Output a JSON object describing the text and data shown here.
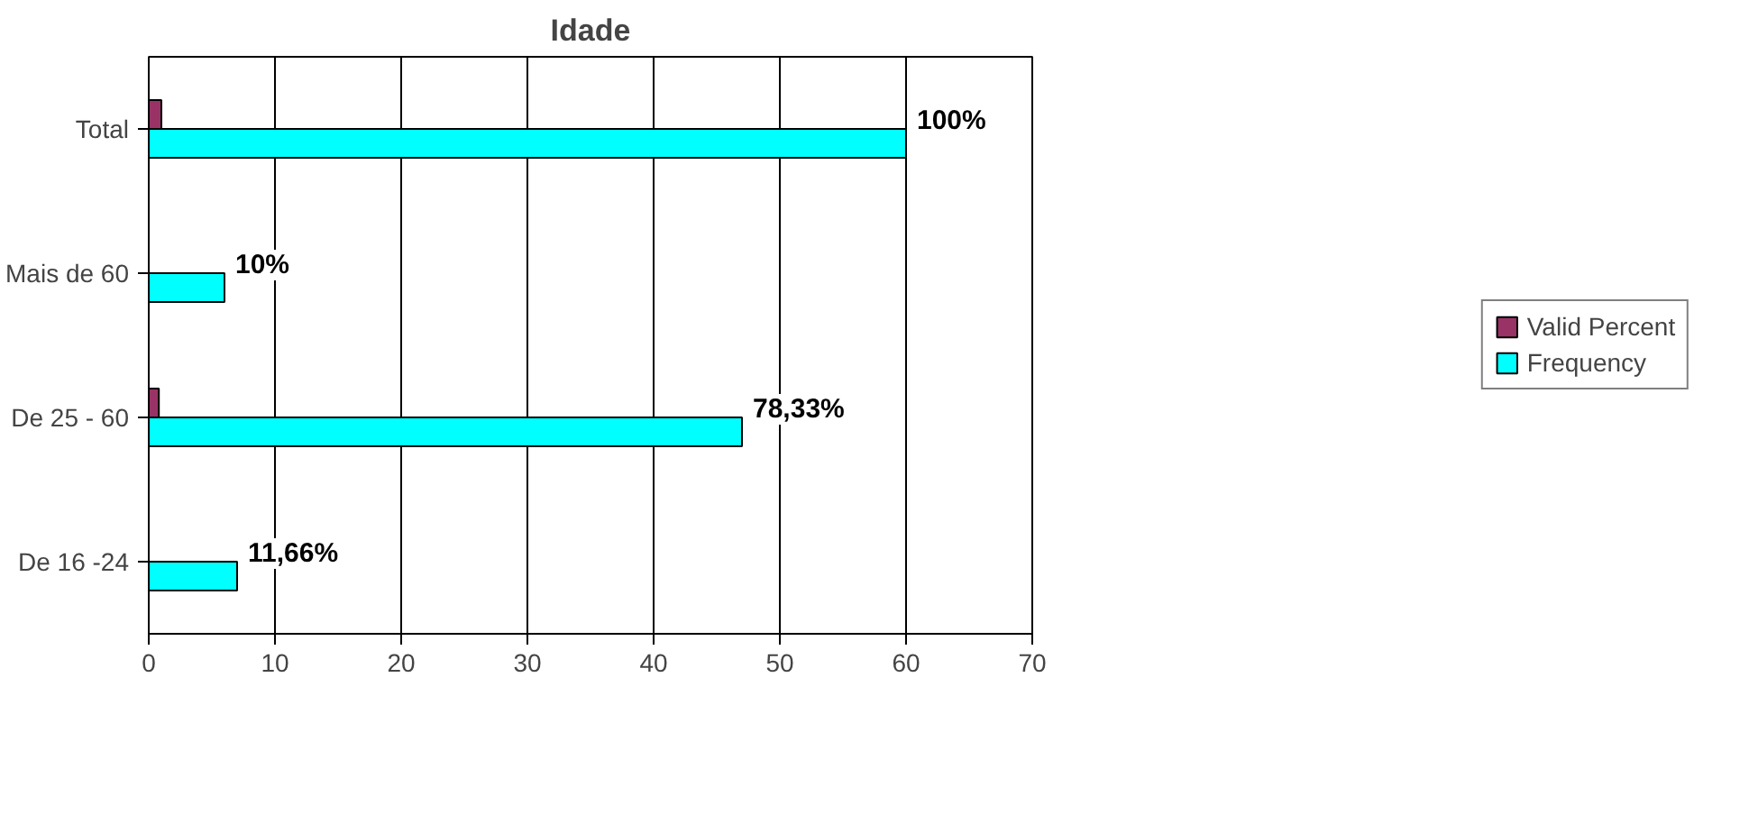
{
  "chart_data": {
    "type": "bar",
    "orientation": "horizontal",
    "title": "Idade",
    "categories": [
      "Total",
      "Mais de 60",
      "De 25 - 60",
      "De 16 -24"
    ],
    "series": [
      {
        "name": "Valid Percent",
        "color": "#993366",
        "values": [
          1,
          null,
          0.8,
          null
        ]
      },
      {
        "name": "Frequency",
        "color": "#00ffff",
        "values": [
          60,
          6,
          47,
          7
        ]
      }
    ],
    "annotations": [
      {
        "text": "100%",
        "x": 60,
        "y": "Total"
      },
      {
        "text": "10%",
        "x": 6,
        "y": "Mais de 60"
      },
      {
        "text": "78,33%",
        "x": 47,
        "y": "De 25 - 60"
      },
      {
        "text": "11,66%",
        "x": 7,
        "y": "De 16 -24"
      }
    ],
    "xlim": [
      0,
      70
    ],
    "xticks": [
      0,
      10,
      20,
      30,
      40,
      50,
      60,
      70
    ],
    "grid": "x",
    "legend": "right"
  }
}
